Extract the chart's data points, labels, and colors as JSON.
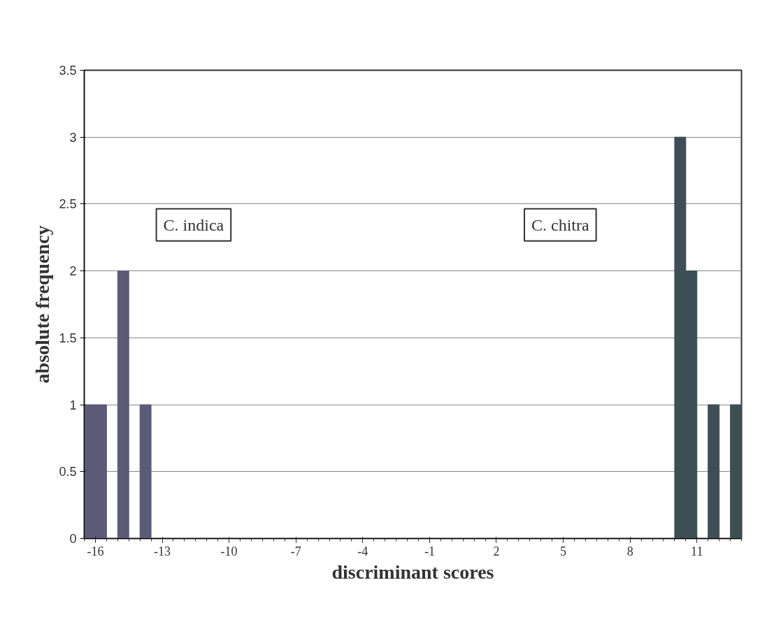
{
  "chart_data": {
    "type": "histogram",
    "xlabel": "discriminant scores",
    "ylabel": "absolute frequency",
    "bins": [
      -16.5,
      -16,
      -15.5,
      -15,
      -14.5,
      -14,
      -13.5,
      -13,
      -12.5,
      -12,
      -11.5,
      -11,
      -10.5,
      -10,
      -9.5,
      -9,
      -8.5,
      -8,
      -7.5,
      -7,
      -6.5,
      -6,
      -5.5,
      -5,
      -4.5,
      -4,
      -3.5,
      -3,
      -2.5,
      -2,
      -1.5,
      -1,
      -0.5,
      0,
      0.5,
      1,
      1.5,
      2,
      2.5,
      3,
      3.5,
      4,
      4.5,
      5,
      5.5,
      6,
      6.5,
      7,
      7.5,
      8,
      8.5,
      9,
      9.5,
      10,
      10.5,
      11,
      11.5,
      12,
      12.5,
      13
    ],
    "values": [
      1,
      1,
      0,
      2,
      0,
      1,
      0,
      0,
      0,
      0,
      0,
      0,
      0,
      0,
      0,
      0,
      0,
      0,
      0,
      0,
      0,
      0,
      0,
      0,
      0,
      0,
      0,
      0,
      0,
      0,
      0,
      0,
      0,
      0,
      0,
      0,
      0,
      0,
      0,
      0,
      0,
      0,
      0,
      0,
      0,
      0,
      0,
      0,
      0,
      0,
      0,
      0,
      0,
      3,
      2,
      0,
      1,
      0,
      1
    ],
    "colors": [
      "#5b5b78",
      "#5b5b78",
      "#5b5b78",
      "#5b5b78",
      "#5b5b78",
      "#5b5b78",
      "#5b5b78",
      "#5b5b78",
      "#5b5b78",
      "#5b5b78",
      "#5b5b78",
      "#5b5b78",
      "#5b5b78",
      "#5b5b78",
      "#5b5b78",
      "#5b5b78",
      "#5b5b78",
      "#5b5b78",
      "#5b5b78",
      "#5b5b78",
      "#5b5b78",
      "#5b5b78",
      "#5b5b78",
      "#5b5b78",
      "#5b5b78",
      "#5b5b78",
      "#5b5b78",
      "#5b5b78",
      "#5b5b78",
      "#5b5b78",
      "#5b5b78",
      "#5b5b78",
      "#5b5b78",
      "#5b5b78",
      "#5b5b78",
      "#5b5b78",
      "#5b5b78",
      "#5b5b78",
      "#5b5b78",
      "#5b5b78",
      "#5b5b78",
      "#5b5b78",
      "#5b5b78",
      "#5b5b78",
      "#5b5b78",
      "#5b5b78",
      "#5b5b78",
      "#5b5b78",
      "#5b5b78",
      "#5b5b78",
      "#5b5b78",
      "#5b5b78",
      "#5b5b78",
      "#3d4f55",
      "#3d4f55",
      "#3d4f55",
      "#3d4f55",
      "#3d4f55",
      "#3d4f55"
    ],
    "xlim": [
      -16.5,
      13
    ],
    "xticks": [
      -16,
      -13,
      -10,
      -7,
      -4,
      -1,
      2,
      5,
      8,
      11
    ],
    "ylim": [
      0,
      3.5
    ],
    "yticks": [
      0,
      0.5,
      1,
      1.5,
      2,
      2.5,
      3,
      3.5
    ],
    "grid": "y",
    "annotations": [
      "C. indica",
      "C. chitra"
    ]
  }
}
